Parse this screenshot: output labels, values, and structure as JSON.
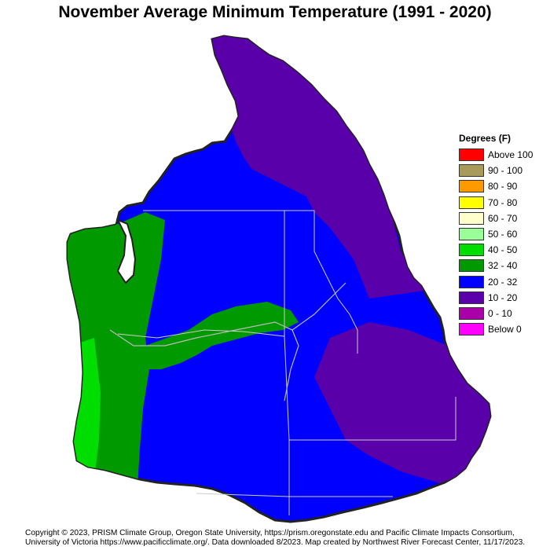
{
  "title": "November Average Minimum Temperature (1991 - 2020)",
  "legend": {
    "title": "Degrees (F)",
    "items": [
      {
        "label": "Above 100",
        "color": "#ff0000"
      },
      {
        "label": "90 - 100",
        "color": "#a89a5a"
      },
      {
        "label": "80 - 90",
        "color": "#ff9900"
      },
      {
        "label": "70 - 80",
        "color": "#ffff00"
      },
      {
        "label": "60 - 70",
        "color": "#ffffcc"
      },
      {
        "label": "50 - 60",
        "color": "#99ff99"
      },
      {
        "label": "40 - 50",
        "color": "#00dd00"
      },
      {
        "label": "32 - 40",
        "color": "#009900"
      },
      {
        "label": "20 - 32",
        "color": "#0000ff"
      },
      {
        "label": "10 - 20",
        "color": "#5a00aa"
      },
      {
        "label": "0 - 10",
        "color": "#aa00aa"
      },
      {
        "label": "Below 0",
        "color": "#ff00ff"
      }
    ]
  },
  "credit": {
    "line1": "Copyright © 2023, PRISM Climate Group, Oregon State University, https://prism.oregonstate.edu and Pacific Climate Impacts Consortium,",
    "line2": "University of Victoria https://www.pacificclimate.org/.  Data downloaded 8/2023. Map created by Northwest River Forecast Center, 11/17/2023."
  },
  "colors": {
    "boundary": "#cccccc",
    "outline": "#222222",
    "river": "#bbbbbb"
  }
}
